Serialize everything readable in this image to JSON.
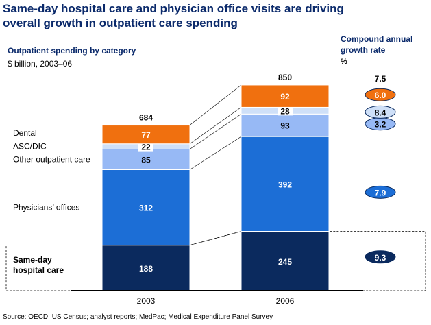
{
  "header": {
    "title": "Same-day hospital care and physician office visits are driving overall growth in outpatient care spending",
    "subtitle": "Outpatient spending by category",
    "units": "$ billion, 2003–06",
    "cagr_title": "Compound annual growth rate",
    "cagr_unit": "%"
  },
  "footer": {
    "source": "Source: OECD; US Census; analyst reports; MedPac; Medical Expenditure Panel Survey"
  },
  "chart_data": {
    "type": "bar",
    "stacked": true,
    "categories": [
      "2003",
      "2006"
    ],
    "totals": [
      "684",
      "850"
    ],
    "series": [
      {
        "name": "Same-day hospital care",
        "values": [
          188,
          245
        ],
        "color": "#0b2a5e",
        "label_color": "#ffffff",
        "cagr": "9.3"
      },
      {
        "name": "Physicians’ offices",
        "values": [
          312,
          392
        ],
        "color": "#1c6ed6",
        "label_color": "#ffffff",
        "cagr": "7.9"
      },
      {
        "name": "Other outpatient care",
        "values": [
          85,
          93
        ],
        "color": "#97b9f5",
        "label_color": "#000000",
        "cagr": "3.2"
      },
      {
        "name": "ASC/DIC",
        "values": [
          22,
          28
        ],
        "color": "#cfe0f8",
        "label_color": "#000000",
        "cagr": "8.4"
      },
      {
        "name": "Dental",
        "values": [
          77,
          92
        ],
        "color": "#f0700f",
        "label_color": "#ffffff",
        "cagr": "6.0"
      }
    ],
    "total_cagr": "7.5",
    "highlight_series": "Same-day hospital care",
    "ylim": [
      0,
      850
    ]
  }
}
